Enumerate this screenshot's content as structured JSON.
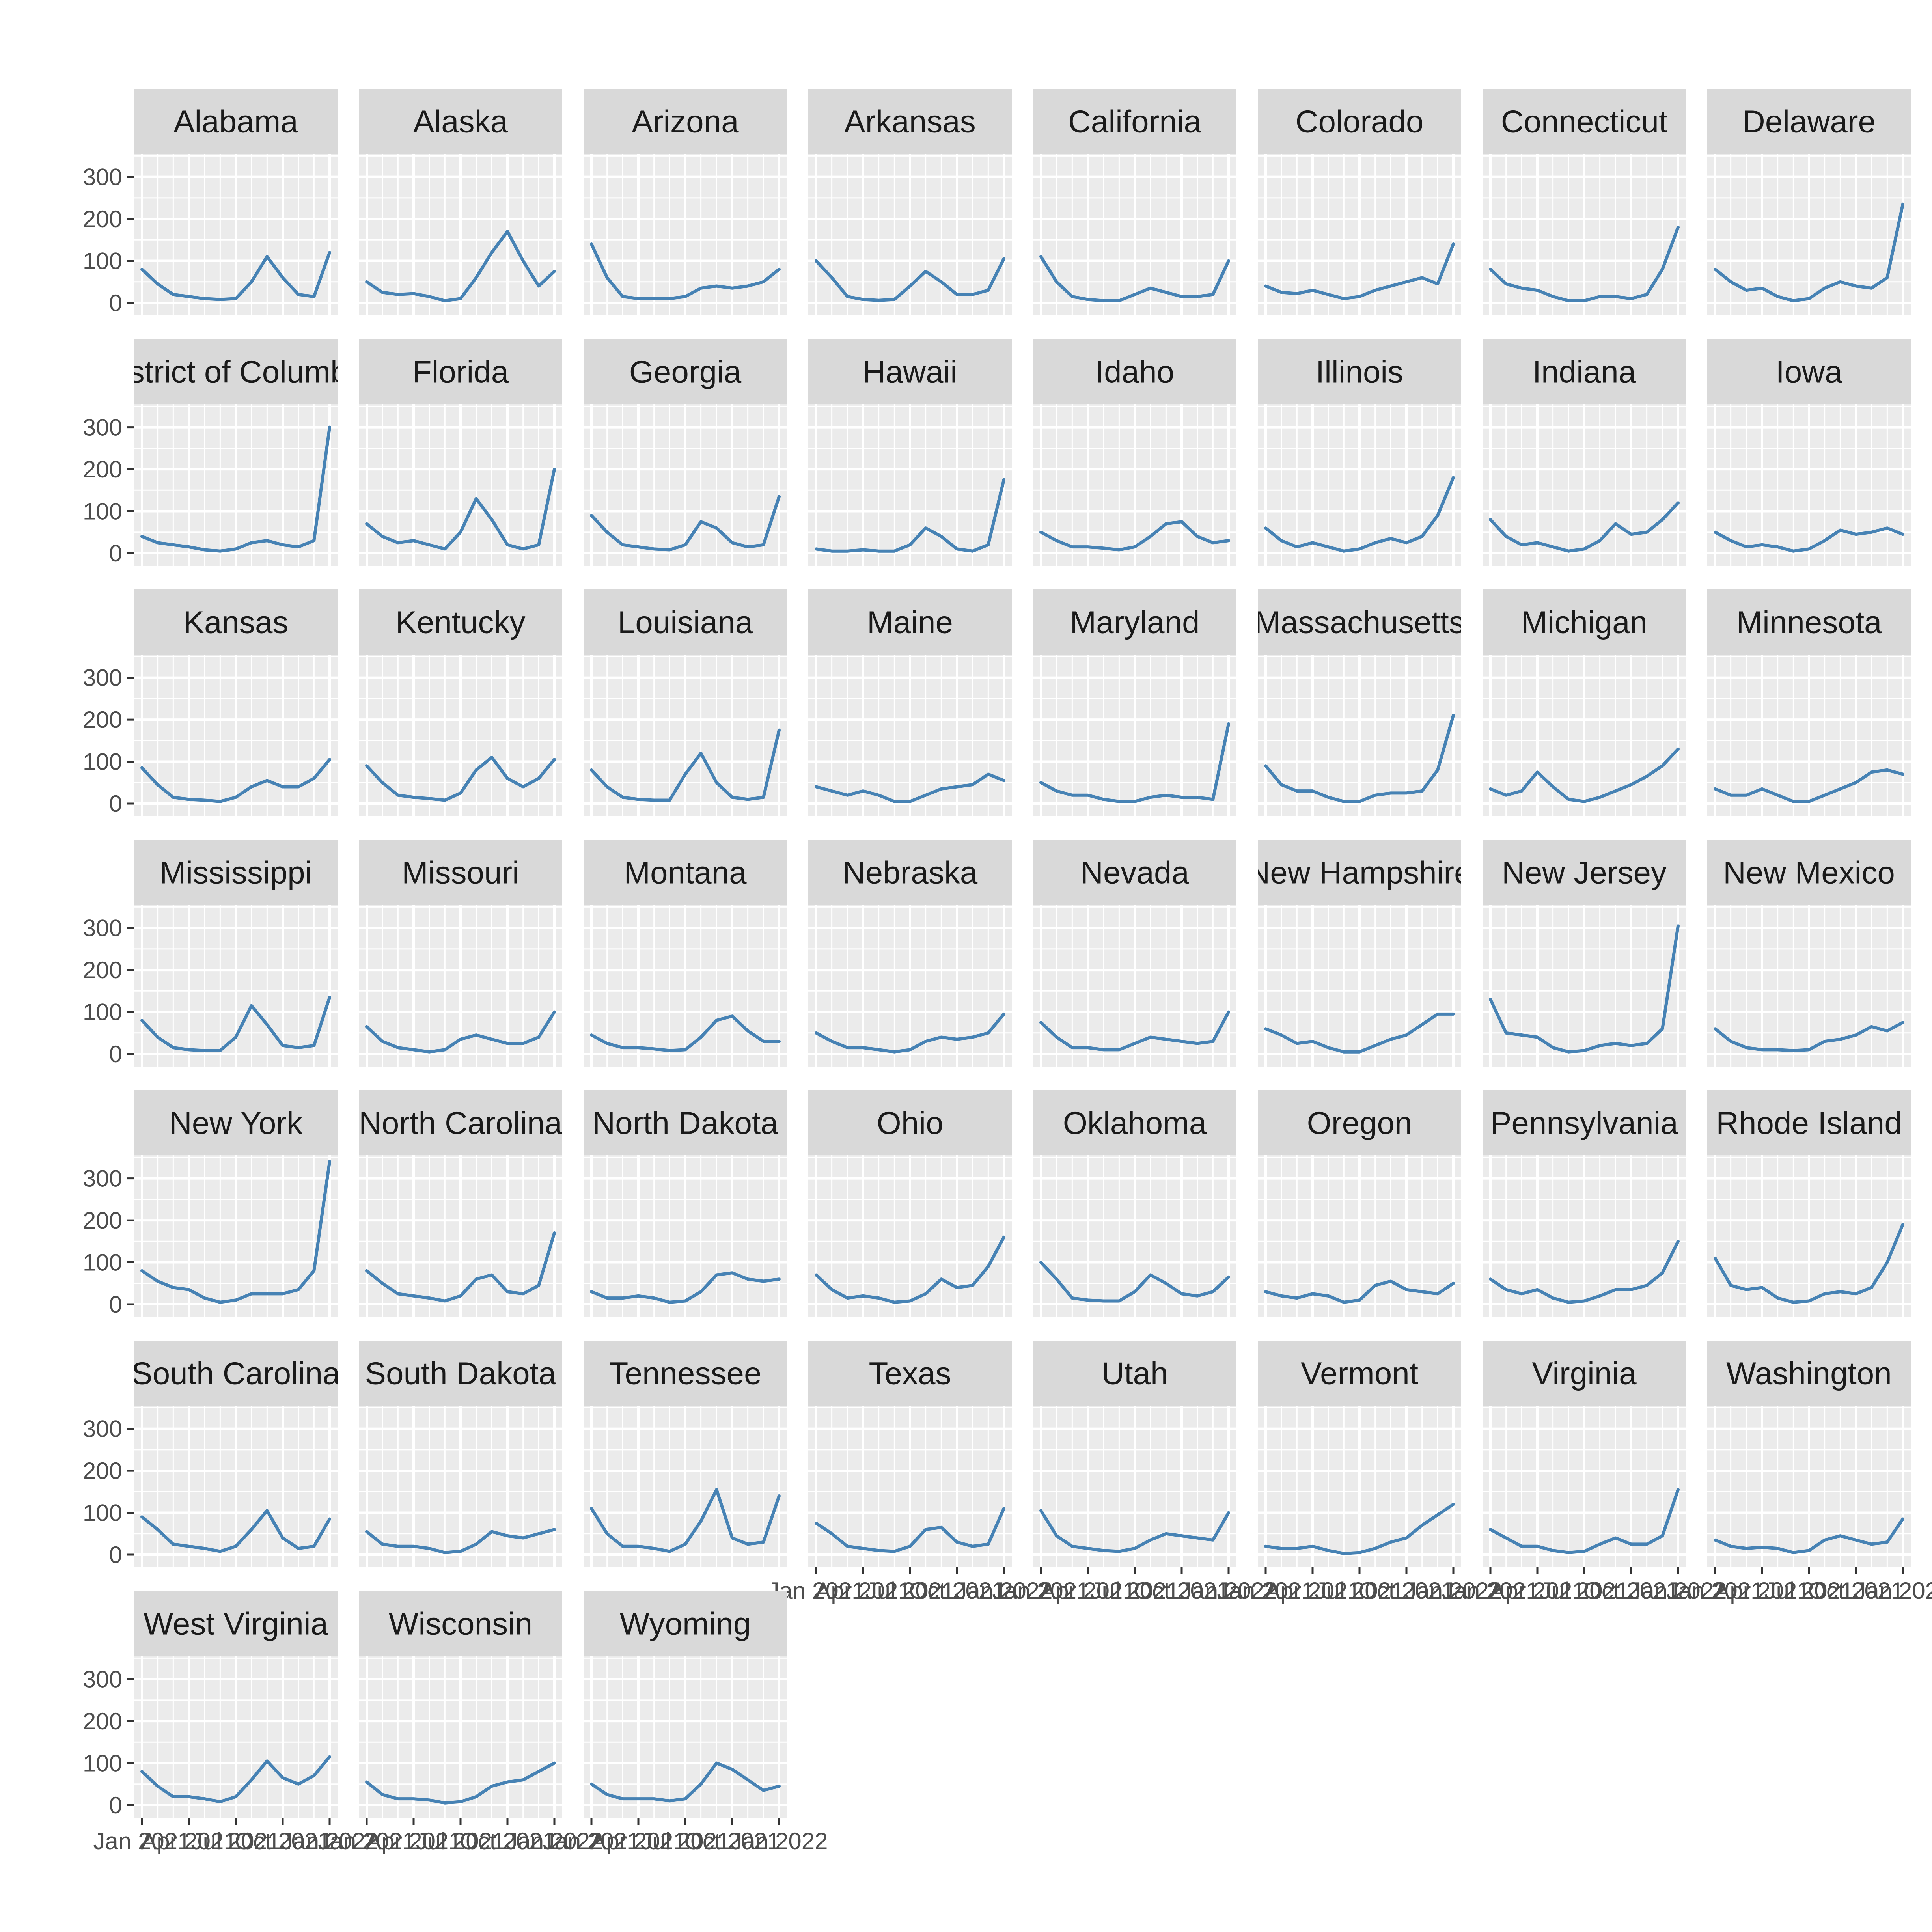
{
  "chart_data": {
    "type": "line",
    "facet": "state",
    "ylim": [
      -30,
      355
    ],
    "y_ticks": [
      0,
      100,
      200,
      300
    ],
    "x_tick_labels": [
      "Jan 2021",
      "Apr 2021",
      "Jul 2021",
      "Oct 2021",
      "Jan 2022"
    ],
    "grid": true,
    "legend": "none",
    "line_color": "#4682B4",
    "panel_background": "#EBEBEB",
    "strip_background": "#D9D9D9",
    "x_points": [
      "2021-01",
      "2021-02",
      "2021-03",
      "2021-04",
      "2021-05",
      "2021-06",
      "2021-07",
      "2021-08",
      "2021-09",
      "2021-10",
      "2021-11",
      "2021-12",
      "2022-01"
    ],
    "panels": [
      {
        "state": "Alabama",
        "strip_label": "Alabama",
        "values": [
          80,
          45,
          20,
          15,
          10,
          8,
          10,
          50,
          110,
          60,
          20,
          15,
          120
        ]
      },
      {
        "state": "Alaska",
        "strip_label": "Alaska",
        "values": [
          50,
          25,
          20,
          22,
          15,
          5,
          10,
          60,
          120,
          170,
          100,
          40,
          75
        ]
      },
      {
        "state": "Arizona",
        "strip_label": "Arizona",
        "values": [
          140,
          60,
          15,
          10,
          10,
          10,
          15,
          35,
          40,
          35,
          40,
          50,
          80
        ]
      },
      {
        "state": "Arkansas",
        "strip_label": "Arkansas",
        "values": [
          100,
          60,
          15,
          8,
          6,
          8,
          40,
          75,
          50,
          20,
          20,
          30,
          105
        ]
      },
      {
        "state": "California",
        "strip_label": "California",
        "values": [
          110,
          50,
          15,
          8,
          5,
          5,
          20,
          35,
          25,
          15,
          15,
          20,
          100
        ]
      },
      {
        "state": "Colorado",
        "strip_label": "Colorado",
        "values": [
          40,
          25,
          22,
          30,
          20,
          10,
          15,
          30,
          40,
          50,
          60,
          45,
          140
        ]
      },
      {
        "state": "Connecticut",
        "strip_label": "Connecticut",
        "values": [
          80,
          45,
          35,
          30,
          15,
          5,
          5,
          15,
          15,
          10,
          20,
          80,
          180
        ]
      },
      {
        "state": "Delaware",
        "strip_label": "Delaware",
        "values": [
          80,
          50,
          30,
          35,
          15,
          5,
          10,
          35,
          50,
          40,
          35,
          60,
          235
        ]
      },
      {
        "state": "District of Columbia",
        "strip_label": "District of Columbia",
        "values": [
          40,
          25,
          20,
          15,
          8,
          5,
          10,
          25,
          30,
          20,
          15,
          30,
          300
        ]
      },
      {
        "state": "Florida",
        "strip_label": "Florida",
        "values": [
          70,
          40,
          25,
          30,
          20,
          10,
          50,
          130,
          80,
          20,
          10,
          20,
          200
        ]
      },
      {
        "state": "Georgia",
        "strip_label": "Georgia",
        "values": [
          90,
          50,
          20,
          15,
          10,
          8,
          20,
          75,
          60,
          25,
          15,
          20,
          135
        ]
      },
      {
        "state": "Hawaii",
        "strip_label": "Hawaii",
        "values": [
          10,
          5,
          5,
          8,
          5,
          5,
          20,
          60,
          40,
          10,
          5,
          20,
          175
        ]
      },
      {
        "state": "Idaho",
        "strip_label": "Idaho",
        "values": [
          50,
          30,
          15,
          15,
          12,
          8,
          15,
          40,
          70,
          75,
          40,
          25,
          30
        ]
      },
      {
        "state": "Illinois",
        "strip_label": "Illinois",
        "values": [
          60,
          30,
          15,
          25,
          15,
          5,
          10,
          25,
          35,
          25,
          40,
          90,
          180
        ]
      },
      {
        "state": "Indiana",
        "strip_label": "Indiana",
        "values": [
          80,
          40,
          20,
          25,
          15,
          5,
          10,
          30,
          70,
          45,
          50,
          80,
          120
        ]
      },
      {
        "state": "Iowa",
        "strip_label": "Iowa",
        "values": [
          50,
          30,
          15,
          20,
          15,
          5,
          10,
          30,
          55,
          45,
          50,
          60,
          45
        ]
      },
      {
        "state": "Kansas",
        "strip_label": "Kansas",
        "values": [
          85,
          45,
          15,
          10,
          8,
          5,
          15,
          40,
          55,
          40,
          40,
          60,
          105
        ]
      },
      {
        "state": "Kentucky",
        "strip_label": "Kentucky",
        "values": [
          90,
          50,
          20,
          15,
          12,
          8,
          25,
          80,
          110,
          60,
          40,
          60,
          105
        ]
      },
      {
        "state": "Louisiana",
        "strip_label": "Louisiana",
        "values": [
          80,
          40,
          15,
          10,
          8,
          8,
          70,
          120,
          50,
          15,
          10,
          15,
          175
        ]
      },
      {
        "state": "Maine",
        "strip_label": "Maine",
        "values": [
          40,
          30,
          20,
          30,
          20,
          5,
          5,
          20,
          35,
          40,
          45,
          70,
          55
        ]
      },
      {
        "state": "Maryland",
        "strip_label": "Maryland",
        "values": [
          50,
          30,
          20,
          20,
          10,
          5,
          5,
          15,
          20,
          15,
          15,
          10,
          190
        ]
      },
      {
        "state": "Massachusetts",
        "strip_label": "Massachusetts",
        "values": [
          90,
          45,
          30,
          30,
          15,
          5,
          5,
          20,
          25,
          25,
          30,
          80,
          210
        ]
      },
      {
        "state": "Michigan",
        "strip_label": "Michigan",
        "values": [
          35,
          20,
          30,
          75,
          40,
          10,
          5,
          15,
          30,
          45,
          65,
          90,
          130
        ]
      },
      {
        "state": "Minnesota",
        "strip_label": "Minnesota",
        "values": [
          35,
          20,
          20,
          35,
          20,
          5,
          5,
          20,
          35,
          50,
          75,
          80,
          70
        ]
      },
      {
        "state": "Mississippi",
        "strip_label": "Mississippi",
        "values": [
          80,
          40,
          15,
          10,
          8,
          8,
          40,
          115,
          70,
          20,
          15,
          20,
          135
        ]
      },
      {
        "state": "Missouri",
        "strip_label": "Missouri",
        "values": [
          65,
          30,
          15,
          10,
          5,
          10,
          35,
          45,
          35,
          25,
          25,
          40,
          100
        ]
      },
      {
        "state": "Montana",
        "strip_label": "Montana",
        "values": [
          45,
          25,
          15,
          15,
          12,
          8,
          10,
          40,
          80,
          90,
          55,
          30,
          30
        ]
      },
      {
        "state": "Nebraska",
        "strip_label": "Nebraska",
        "values": [
          50,
          30,
          15,
          15,
          10,
          5,
          10,
          30,
          40,
          35,
          40,
          50,
          95
        ]
      },
      {
        "state": "Nevada",
        "strip_label": "Nevada",
        "values": [
          75,
          40,
          15,
          15,
          10,
          10,
          25,
          40,
          35,
          30,
          25,
          30,
          100
        ]
      },
      {
        "state": "New Hampshire",
        "strip_label": "New Hampshire",
        "values": [
          60,
          45,
          25,
          30,
          15,
          5,
          5,
          20,
          35,
          45,
          70,
          95,
          95
        ]
      },
      {
        "state": "New Jersey",
        "strip_label": "New Jersey",
        "values": [
          130,
          50,
          45,
          40,
          15,
          5,
          8,
          20,
          25,
          20,
          25,
          60,
          305
        ]
      },
      {
        "state": "New Mexico",
        "strip_label": "New Mexico",
        "values": [
          60,
          30,
          15,
          10,
          10,
          8,
          10,
          30,
          35,
          45,
          65,
          55,
          75
        ]
      },
      {
        "state": "New York",
        "strip_label": "New York",
        "values": [
          80,
          55,
          40,
          35,
          15,
          5,
          10,
          25,
          25,
          25,
          35,
          80,
          340
        ]
      },
      {
        "state": "North Carolina",
        "strip_label": "North Carolina",
        "values": [
          80,
          50,
          25,
          20,
          15,
          8,
          20,
          60,
          70,
          30,
          25,
          45,
          170
        ]
      },
      {
        "state": "North Dakota",
        "strip_label": "North Dakota",
        "values": [
          30,
          15,
          15,
          20,
          15,
          5,
          8,
          30,
          70,
          75,
          60,
          55,
          60
        ]
      },
      {
        "state": "Ohio",
        "strip_label": "Ohio",
        "values": [
          70,
          35,
          15,
          20,
          15,
          5,
          8,
          25,
          60,
          40,
          45,
          90,
          160
        ]
      },
      {
        "state": "Oklahoma",
        "strip_label": "Oklahoma",
        "values": [
          100,
          60,
          15,
          10,
          8,
          8,
          30,
          70,
          50,
          25,
          20,
          30,
          65
        ]
      },
      {
        "state": "Oregon",
        "strip_label": "Oregon",
        "values": [
          30,
          20,
          15,
          25,
          20,
          5,
          10,
          45,
          55,
          35,
          30,
          25,
          50
        ]
      },
      {
        "state": "Pennsylvania",
        "strip_label": "Pennsylvania",
        "values": [
          60,
          35,
          25,
          35,
          15,
          5,
          8,
          20,
          35,
          35,
          45,
          75,
          150
        ]
      },
      {
        "state": "Rhode Island",
        "strip_label": "Rhode Island",
        "values": [
          110,
          45,
          35,
          40,
          15,
          5,
          8,
          25,
          30,
          25,
          40,
          100,
          190
        ]
      },
      {
        "state": "South Carolina",
        "strip_label": "South Carolina",
        "values": [
          90,
          60,
          25,
          20,
          15,
          8,
          20,
          60,
          105,
          40,
          15,
          20,
          85
        ]
      },
      {
        "state": "South Dakota",
        "strip_label": "South Dakota",
        "values": [
          55,
          25,
          20,
          20,
          15,
          5,
          8,
          25,
          55,
          45,
          40,
          50,
          60
        ]
      },
      {
        "state": "Tennessee",
        "strip_label": "Tennessee",
        "values": [
          110,
          50,
          20,
          20,
          15,
          8,
          25,
          80,
          155,
          40,
          25,
          30,
          140
        ]
      },
      {
        "state": "Texas",
        "strip_label": "Texas",
        "values": [
          75,
          50,
          20,
          15,
          10,
          8,
          20,
          60,
          65,
          30,
          20,
          25,
          110
        ]
      },
      {
        "state": "Utah",
        "strip_label": "Utah",
        "values": [
          105,
          45,
          20,
          15,
          10,
          8,
          15,
          35,
          50,
          45,
          40,
          35,
          100
        ]
      },
      {
        "state": "Vermont",
        "strip_label": "Vermont",
        "values": [
          20,
          15,
          15,
          20,
          10,
          3,
          5,
          15,
          30,
          40,
          70,
          95,
          120
        ]
      },
      {
        "state": "Virginia",
        "strip_label": "Virginia",
        "values": [
          60,
          40,
          20,
          20,
          10,
          5,
          8,
          25,
          40,
          25,
          25,
          45,
          155
        ]
      },
      {
        "state": "Washington",
        "strip_label": "Washington",
        "values": [
          35,
          20,
          15,
          18,
          15,
          5,
          10,
          35,
          45,
          35,
          25,
          30,
          85
        ]
      },
      {
        "state": "West Virginia",
        "strip_label": "West Virginia",
        "values": [
          80,
          45,
          20,
          20,
          15,
          8,
          20,
          60,
          105,
          65,
          50,
          70,
          115
        ]
      },
      {
        "state": "Wisconsin",
        "strip_label": "Wisconsin",
        "values": [
          55,
          25,
          15,
          15,
          12,
          5,
          8,
          20,
          45,
          55,
          60,
          80,
          100
        ]
      },
      {
        "state": "Wyoming",
        "strip_label": "Wyoming",
        "values": [
          50,
          25,
          15,
          15,
          15,
          10,
          15,
          50,
          100,
          85,
          60,
          35,
          45
        ]
      }
    ]
  }
}
